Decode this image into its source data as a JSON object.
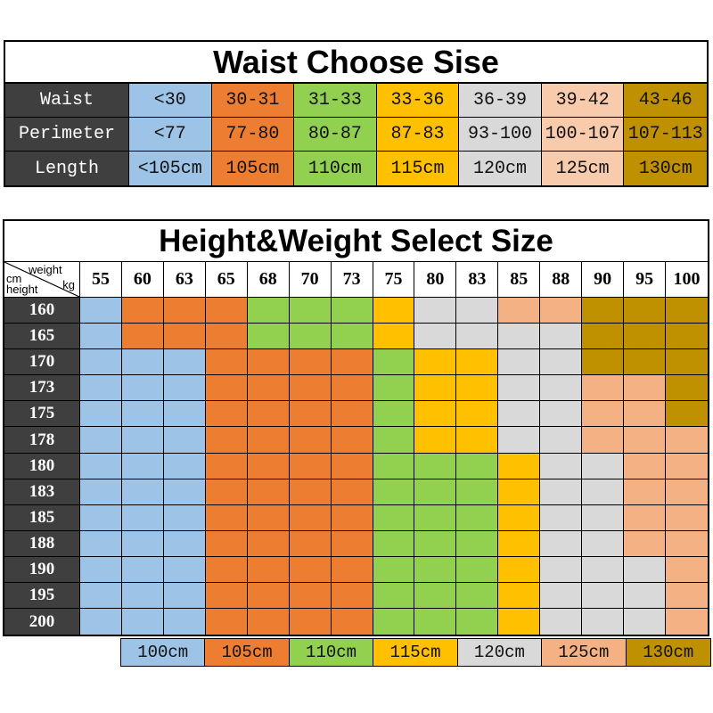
{
  "palette": {
    "blue": "#9DC3E6",
    "orange": "#ED7D31",
    "green": "#92D050",
    "yellow": "#FFC000",
    "gray": "#D9D9D9",
    "peach_light": "#F8CBAD",
    "peach": "#F4B183",
    "olive": "#BF9000",
    "header_dark": "#3F3F3F",
    "text_light": "#FFFFFF",
    "text_dark": "#111111"
  },
  "chart_data": [
    {
      "type": "table",
      "title": "Waist Choose Sise",
      "column_colors": [
        "blue",
        "orange",
        "green",
        "yellow",
        "gray",
        "peach_light",
        "olive"
      ],
      "rows": [
        {
          "label": "Waist",
          "cells": [
            "<30",
            "30-31",
            "31-33",
            "33-36",
            "36-39",
            "39-42",
            "43-46"
          ]
        },
        {
          "label": "Perimeter",
          "cells": [
            "<77",
            "77-80",
            "80-87",
            "87-83",
            "93-100",
            "100-107",
            "107-113"
          ]
        },
        {
          "label": "Length",
          "cells": [
            "<105cm",
            "105cm",
            "110cm",
            "115cm",
            "120cm",
            "125cm",
            "130cm"
          ]
        }
      ]
    },
    {
      "type": "heatmap",
      "title": "Height&Weight Select Size",
      "corner": {
        "weight_label": "weight",
        "weight_unit": "kg",
        "height_unit": "cm",
        "height_label": "height"
      },
      "weight_columns": [
        "55",
        "60",
        "63",
        "65",
        "68",
        "70",
        "73",
        "75",
        "80",
        "83",
        "85",
        "88",
        "90",
        "95",
        "100"
      ],
      "rows": [
        {
          "height": "160",
          "cells": [
            "blue",
            "orange",
            "orange",
            "orange",
            "green",
            "green",
            "green",
            "yellow",
            "gray",
            "gray",
            "peach",
            "peach",
            "olive",
            "olive",
            "olive"
          ]
        },
        {
          "height": "165",
          "cells": [
            "blue",
            "orange",
            "orange",
            "orange",
            "green",
            "green",
            "green",
            "yellow",
            "gray",
            "gray",
            "gray",
            "gray",
            "olive",
            "olive",
            "olive"
          ]
        },
        {
          "height": "170",
          "cells": [
            "blue",
            "blue",
            "blue",
            "orange",
            "orange",
            "orange",
            "orange",
            "green",
            "yellow",
            "yellow",
            "gray",
            "gray",
            "olive",
            "olive",
            "olive"
          ]
        },
        {
          "height": "173",
          "cells": [
            "blue",
            "blue",
            "blue",
            "orange",
            "orange",
            "orange",
            "orange",
            "green",
            "yellow",
            "yellow",
            "gray",
            "gray",
            "peach",
            "peach",
            "olive"
          ]
        },
        {
          "height": "175",
          "cells": [
            "blue",
            "blue",
            "blue",
            "orange",
            "orange",
            "orange",
            "orange",
            "green",
            "yellow",
            "yellow",
            "gray",
            "gray",
            "peach",
            "peach",
            "olive"
          ]
        },
        {
          "height": "178",
          "cells": [
            "blue",
            "blue",
            "blue",
            "orange",
            "orange",
            "orange",
            "orange",
            "green",
            "yellow",
            "yellow",
            "gray",
            "gray",
            "peach",
            "peach",
            "peach"
          ]
        },
        {
          "height": "180",
          "cells": [
            "blue",
            "blue",
            "blue",
            "orange",
            "orange",
            "orange",
            "orange",
            "green",
            "green",
            "green",
            "yellow",
            "gray",
            "gray",
            "peach",
            "peach"
          ]
        },
        {
          "height": "183",
          "cells": [
            "blue",
            "blue",
            "blue",
            "orange",
            "orange",
            "orange",
            "orange",
            "green",
            "green",
            "green",
            "yellow",
            "gray",
            "gray",
            "peach",
            "peach"
          ]
        },
        {
          "height": "185",
          "cells": [
            "blue",
            "blue",
            "blue",
            "orange",
            "orange",
            "orange",
            "orange",
            "green",
            "green",
            "green",
            "yellow",
            "gray",
            "gray",
            "peach",
            "peach"
          ]
        },
        {
          "height": "188",
          "cells": [
            "blue",
            "blue",
            "blue",
            "orange",
            "orange",
            "orange",
            "orange",
            "green",
            "green",
            "green",
            "yellow",
            "gray",
            "gray",
            "peach",
            "peach"
          ]
        },
        {
          "height": "190",
          "cells": [
            "blue",
            "blue",
            "blue",
            "orange",
            "orange",
            "orange",
            "orange",
            "green",
            "green",
            "green",
            "yellow",
            "gray",
            "gray",
            "gray",
            "peach"
          ]
        },
        {
          "height": "195",
          "cells": [
            "blue",
            "blue",
            "blue",
            "orange",
            "orange",
            "orange",
            "orange",
            "green",
            "green",
            "green",
            "yellow",
            "gray",
            "gray",
            "gray",
            "peach"
          ]
        },
        {
          "height": "200",
          "cells": [
            "blue",
            "blue",
            "blue",
            "orange",
            "orange",
            "orange",
            "orange",
            "green",
            "green",
            "green",
            "yellow",
            "gray",
            "gray",
            "gray",
            "peach"
          ]
        }
      ],
      "legend": [
        {
          "label": "100cm",
          "color": "blue"
        },
        {
          "label": "105cm",
          "color": "orange"
        },
        {
          "label": "110cm",
          "color": "green"
        },
        {
          "label": "115cm",
          "color": "yellow"
        },
        {
          "label": "120cm",
          "color": "gray"
        },
        {
          "label": "125cm",
          "color": "peach"
        },
        {
          "label": "130cm",
          "color": "olive"
        }
      ]
    }
  ]
}
